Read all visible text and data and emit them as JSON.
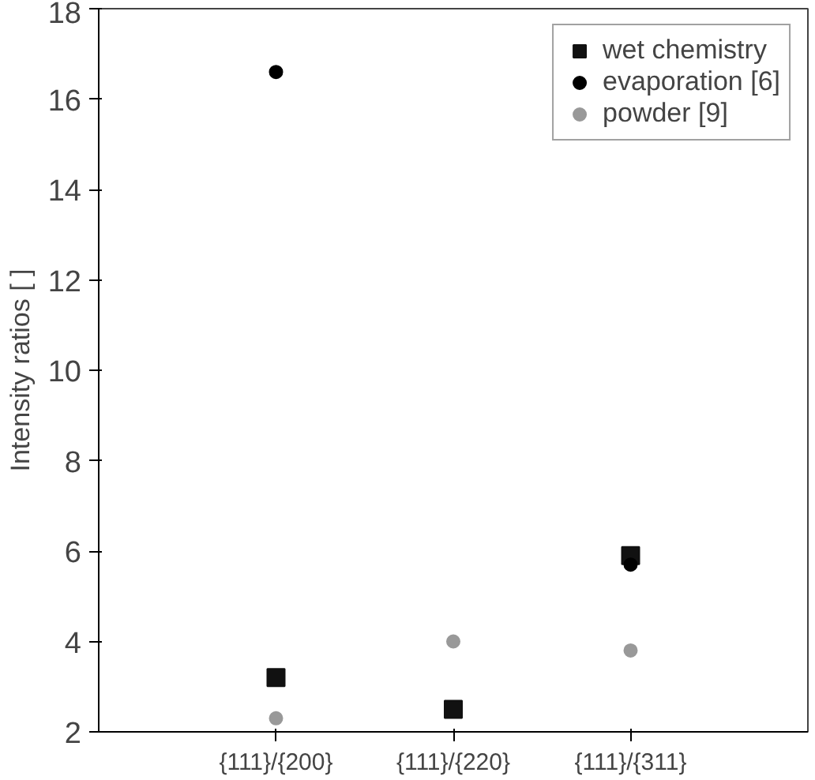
{
  "chart_data": {
    "type": "scatter",
    "ylabel": "Intensity ratios [ ]",
    "categories": [
      "{111}/{200}",
      "{111}/{220}",
      "{111}/{311}"
    ],
    "ylim": [
      2,
      18
    ],
    "yticks": [
      2,
      4,
      6,
      8,
      10,
      12,
      14,
      16,
      18
    ],
    "grid": false,
    "legend": "top right",
    "series": [
      {
        "name": "wet chemistry",
        "color": "#111111",
        "marker": "square",
        "values": [
          3.2,
          2.5,
          5.9
        ]
      },
      {
        "name": "evaporation [6]",
        "color": "#000000",
        "marker": "circle",
        "values": [
          16.6,
          null,
          5.7
        ]
      },
      {
        "name": "powder [9]",
        "color": "#999999",
        "marker": "circle",
        "values": [
          2.3,
          4.0,
          3.8
        ]
      }
    ]
  }
}
